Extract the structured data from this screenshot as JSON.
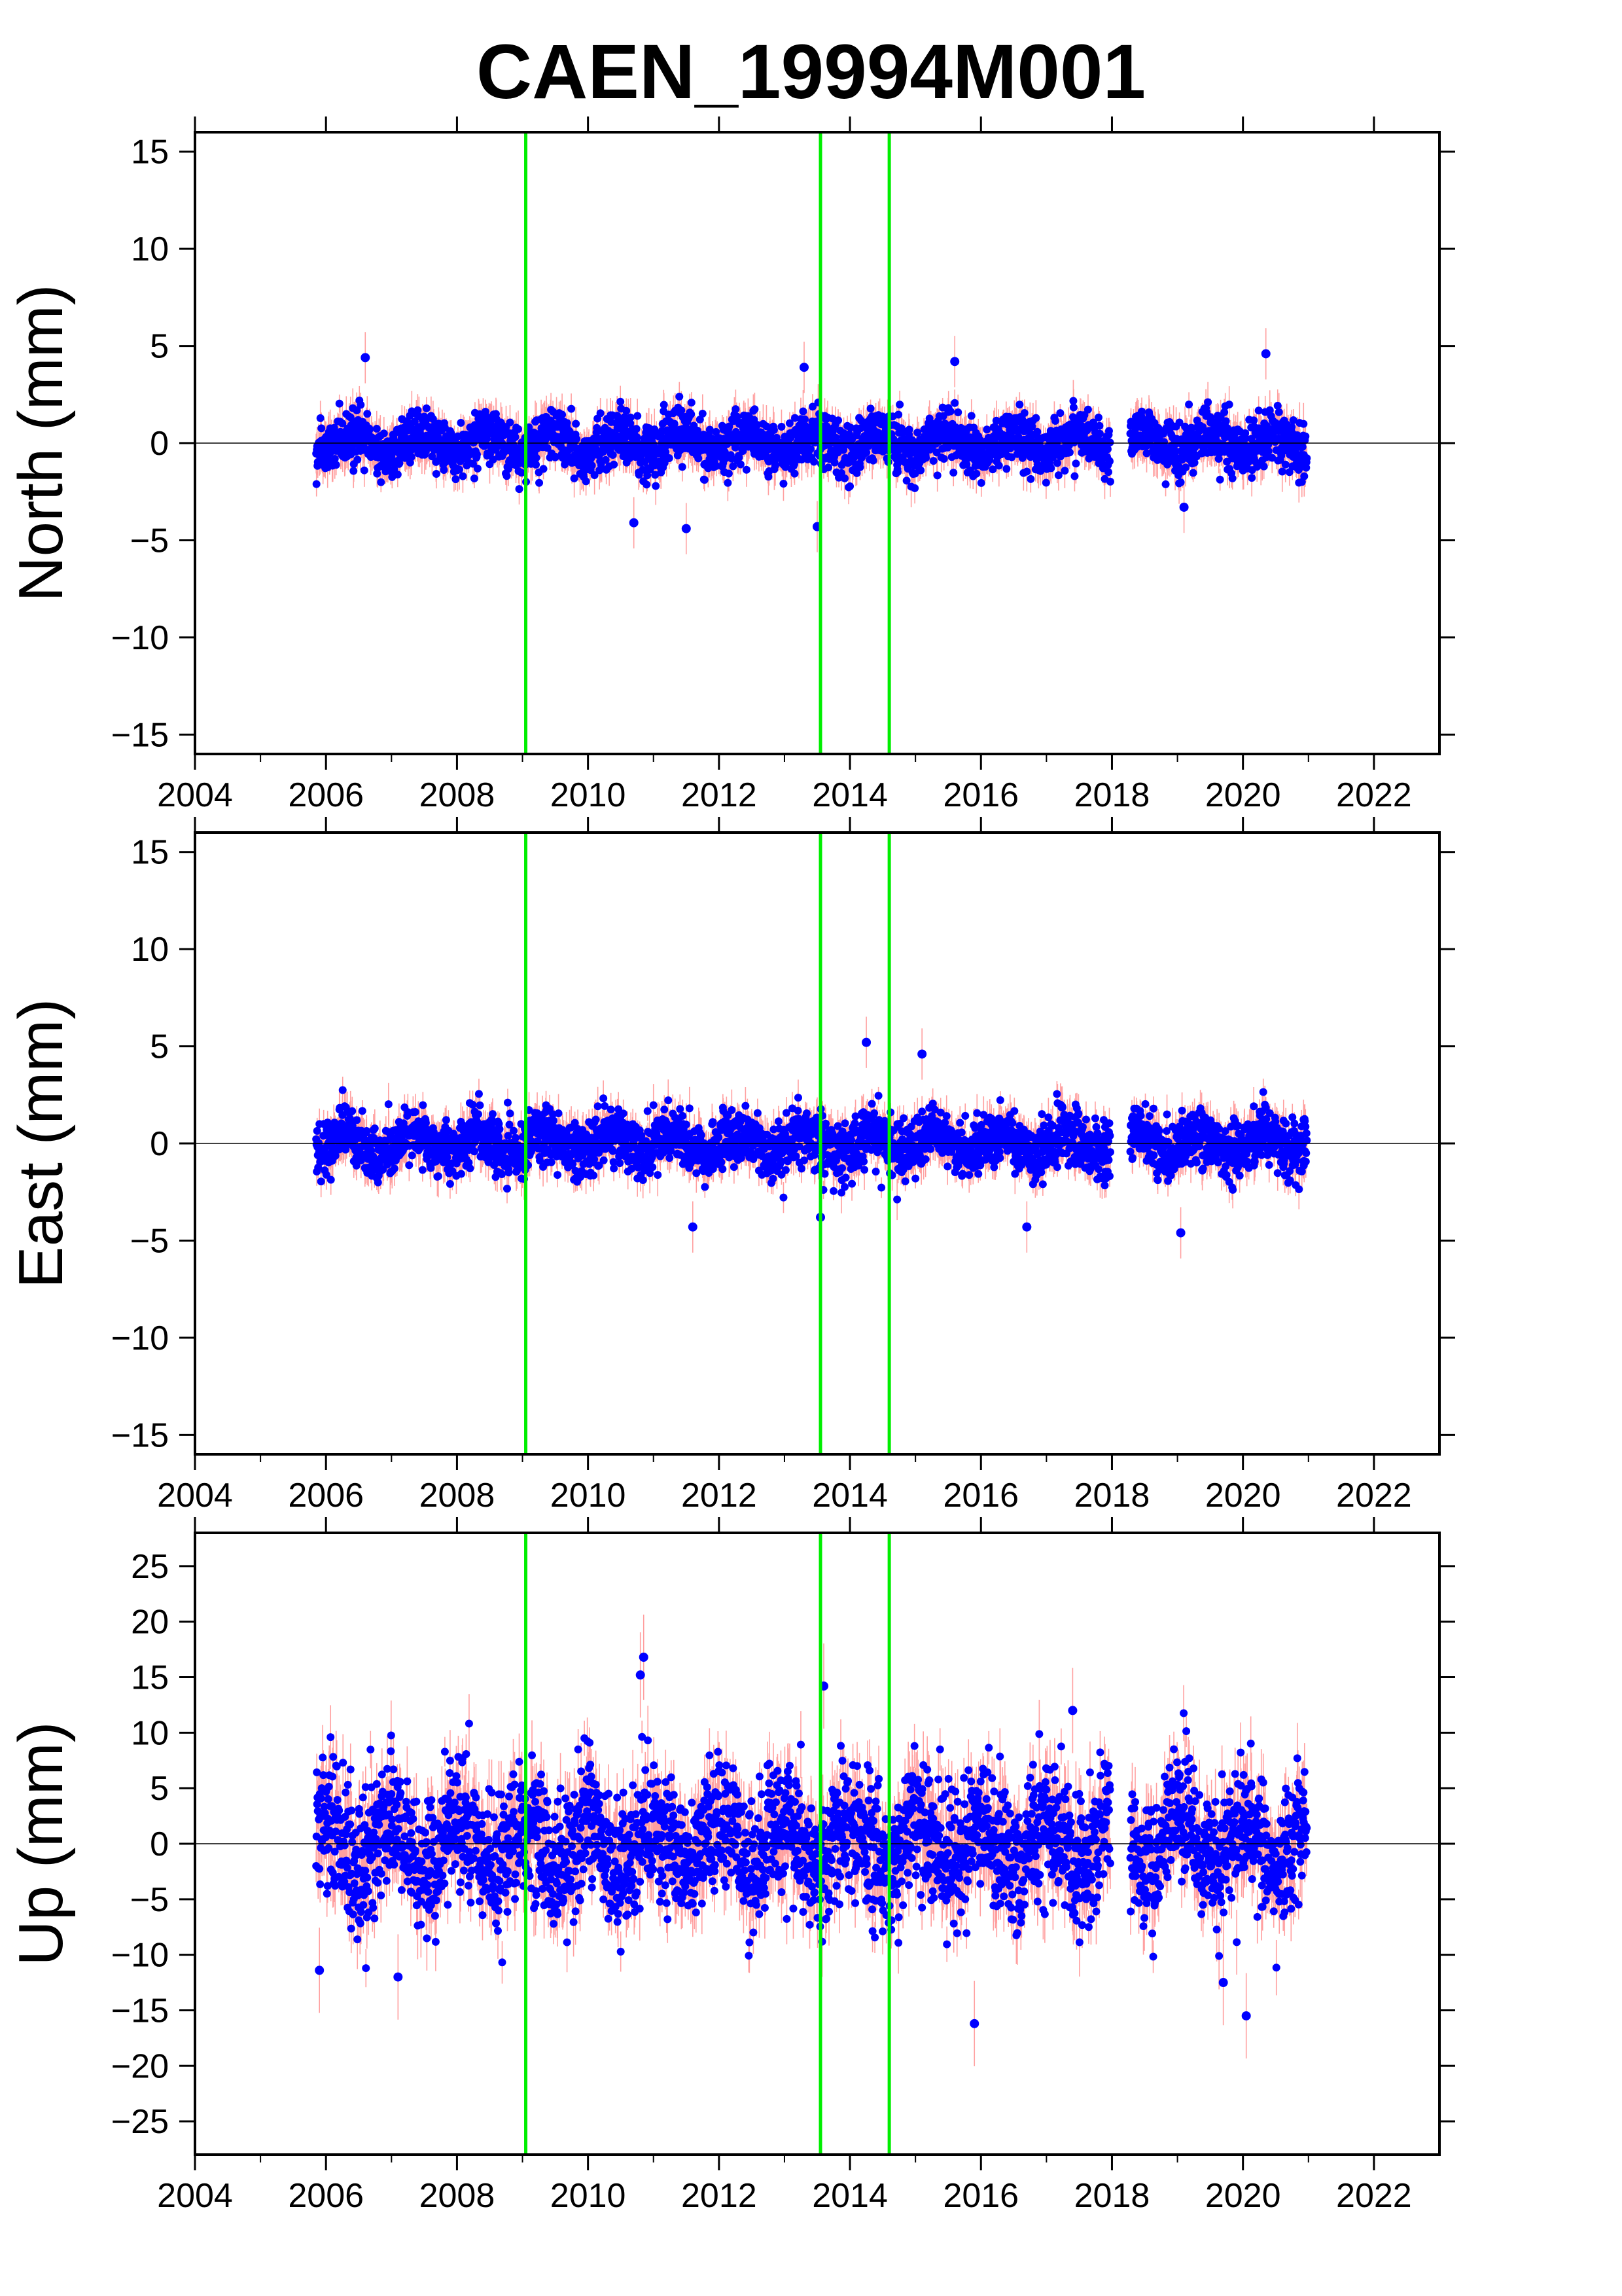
{
  "title": "CAEN_19994M001",
  "colors": {
    "points": "#0000ff",
    "error_bars": "#ff8080",
    "event_lines": "#00ee00",
    "zero_line": "#000000",
    "frame": "#000000"
  },
  "chart_data": [
    {
      "type": "scatter",
      "panel": "north",
      "ylabel": "North (mm)",
      "xlim": [
        2004,
        2023
      ],
      "ylim": [
        -16,
        16
      ],
      "x_ticks": [
        2004,
        2006,
        2008,
        2010,
        2012,
        2014,
        2016,
        2018,
        2020,
        2022
      ],
      "x_tick_labels": [
        "2004",
        "2006",
        "2008",
        "2010",
        "2012",
        "2014",
        "2016",
        "2018",
        "2020",
        "2022"
      ],
      "y_ticks": [
        -15,
        -10,
        -5,
        0,
        5,
        10,
        15
      ],
      "y_tick_labels": [
        "−15",
        "−10",
        "−5",
        "0",
        "5",
        "10",
        "15"
      ],
      "event_lines_x": [
        2009.05,
        2013.55,
        2014.6
      ],
      "data_range": [
        2005.85,
        2020.98
      ],
      "data_gap": [
        2017.98,
        2018.28
      ],
      "noise_sigma": 0.9,
      "error_sigma": 1.1,
      "outliers": [
        [
          2006.6,
          4.4
        ],
        [
          2013.3,
          3.9
        ],
        [
          2015.6,
          4.2
        ],
        [
          2020.35,
          4.6
        ],
        [
          2013.5,
          -4.3
        ],
        [
          2011.5,
          -4.4
        ],
        [
          2010.7,
          -4.1
        ],
        [
          2019.1,
          -3.3
        ]
      ]
    },
    {
      "type": "scatter",
      "panel": "east",
      "ylabel": "East (mm)",
      "xlim": [
        2004,
        2023
      ],
      "ylim": [
        -16,
        16
      ],
      "x_ticks": [
        2004,
        2006,
        2008,
        2010,
        2012,
        2014,
        2016,
        2018,
        2020,
        2022
      ],
      "x_tick_labels": [
        "2004",
        "2006",
        "2008",
        "2010",
        "2012",
        "2014",
        "2016",
        "2018",
        "2020",
        "2022"
      ],
      "y_ticks": [
        -15,
        -10,
        -5,
        0,
        5,
        10,
        15
      ],
      "y_tick_labels": [
        "−15",
        "−10",
        "−5",
        "0",
        "5",
        "10",
        "15"
      ],
      "event_lines_x": [
        2009.05,
        2013.55,
        2014.6
      ],
      "data_range": [
        2005.85,
        2020.98
      ],
      "data_gap": [
        2017.98,
        2018.28
      ],
      "noise_sigma": 0.95,
      "error_sigma": 1.1,
      "outliers": [
        [
          2014.25,
          5.2
        ],
        [
          2015.1,
          4.6
        ],
        [
          2013.55,
          -3.8
        ],
        [
          2019.05,
          -4.6
        ],
        [
          2011.6,
          -4.3
        ],
        [
          2016.7,
          -4.3
        ]
      ]
    },
    {
      "type": "scatter",
      "panel": "up",
      "ylabel": "Up (mm)",
      "xlim": [
        2004,
        2023
      ],
      "ylim": [
        -28,
        28
      ],
      "x_ticks": [
        2004,
        2006,
        2008,
        2010,
        2012,
        2014,
        2016,
        2018,
        2020,
        2022
      ],
      "x_tick_labels": [
        "2004",
        "2006",
        "2008",
        "2010",
        "2012",
        "2014",
        "2016",
        "2018",
        "2020",
        "2022"
      ],
      "y_ticks": [
        -25,
        -20,
        -15,
        -10,
        -5,
        0,
        5,
        10,
        15,
        20,
        25
      ],
      "y_tick_labels": [
        "−25",
        "−20",
        "−15",
        "−10",
        "−5",
        "0",
        "5",
        "10",
        "15",
        "20",
        "25"
      ],
      "event_lines_x": [
        2009.05,
        2013.55,
        2014.6
      ],
      "data_range": [
        2005.85,
        2020.98
      ],
      "data_gap": [
        2017.98,
        2018.28
      ],
      "noise_sigma": 4.0,
      "error_sigma": 3.2,
      "outliers": [
        [
          2010.85,
          16.8
        ],
        [
          2010.8,
          15.2
        ],
        [
          2013.6,
          14.2
        ],
        [
          2017.4,
          12.0
        ],
        [
          2015.9,
          -16.2
        ],
        [
          2020.05,
          -15.5
        ],
        [
          2005.9,
          -11.4
        ],
        [
          2007.1,
          -12.0
        ],
        [
          2019.7,
          -12.5
        ]
      ]
    }
  ]
}
